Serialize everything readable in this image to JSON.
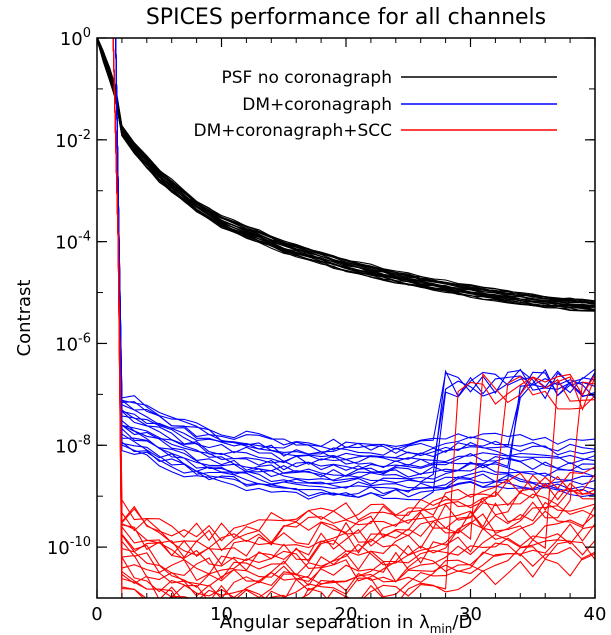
{
  "chart_data": {
    "type": "line",
    "title": "SPICES performance for all channels",
    "xlabel": "Angular separation in λmin/D",
    "xlabel_parts": {
      "main": "Angular separation in λ",
      "sub": "min",
      "tail": "/D"
    },
    "ylabel": "Contrast",
    "xlim": [
      0,
      40
    ],
    "ylim": [
      1e-11,
      1
    ],
    "y_scale": "log",
    "x_ticks": [
      "0",
      "10",
      "20",
      "30",
      "40"
    ],
    "y_ticks": [
      {
        "base": "10",
        "exp": "0"
      },
      {
        "base": "10",
        "exp": "-2"
      },
      {
        "base": "10",
        "exp": "-4"
      },
      {
        "base": "10",
        "exp": "-6"
      },
      {
        "base": "10",
        "exp": "-8"
      },
      {
        "base": "10",
        "exp": "-10"
      }
    ],
    "legend_position": "top-right",
    "grid": false,
    "series": [
      {
        "name": "PSF no coronagraph",
        "color": "#000000",
        "x": [
          0,
          1,
          1.5,
          2,
          3,
          5,
          8,
          10,
          15,
          20,
          25,
          30,
          35,
          40
        ],
        "y": [
          1,
          0.2,
          0.08,
          0.015,
          0.007,
          0.002,
          0.0005,
          0.00025,
          8e-05,
          3.5e-05,
          1.8e-05,
          1.1e-05,
          7e-06,
          5.5e-06
        ]
      },
      {
        "name": "DM+coronagraph",
        "color": "#0000ff",
        "x": [
          1.5,
          2,
          3,
          5,
          8,
          10,
          15,
          20,
          25,
          28,
          30,
          32,
          35,
          38,
          40
        ],
        "y": [
          1,
          3e-08,
          2.5e-08,
          1.5e-08,
          8e-09,
          6e-09,
          4e-09,
          3.5e-09,
          3.5e-09,
          4e-09,
          5e-09,
          5e-09,
          4e-09,
          3.5e-09,
          3.5e-09
        ]
      },
      {
        "name": "DM+coronagraph+SCC",
        "color": "#ff0000",
        "x": [
          1.5,
          2,
          3,
          5,
          8,
          10,
          15,
          20,
          25,
          30,
          35,
          40
        ],
        "y": [
          1,
          1e-10,
          8e-11,
          5e-11,
          3e-11,
          3e-11,
          5e-11,
          8e-11,
          1e-10,
          2e-10,
          3e-10,
          4e-10
        ]
      }
    ]
  },
  "colors": {
    "psf": "#000000",
    "dm": "#0000ff",
    "scc": "#ff0000",
    "axis": "#000000",
    "background": "#ffffff"
  }
}
